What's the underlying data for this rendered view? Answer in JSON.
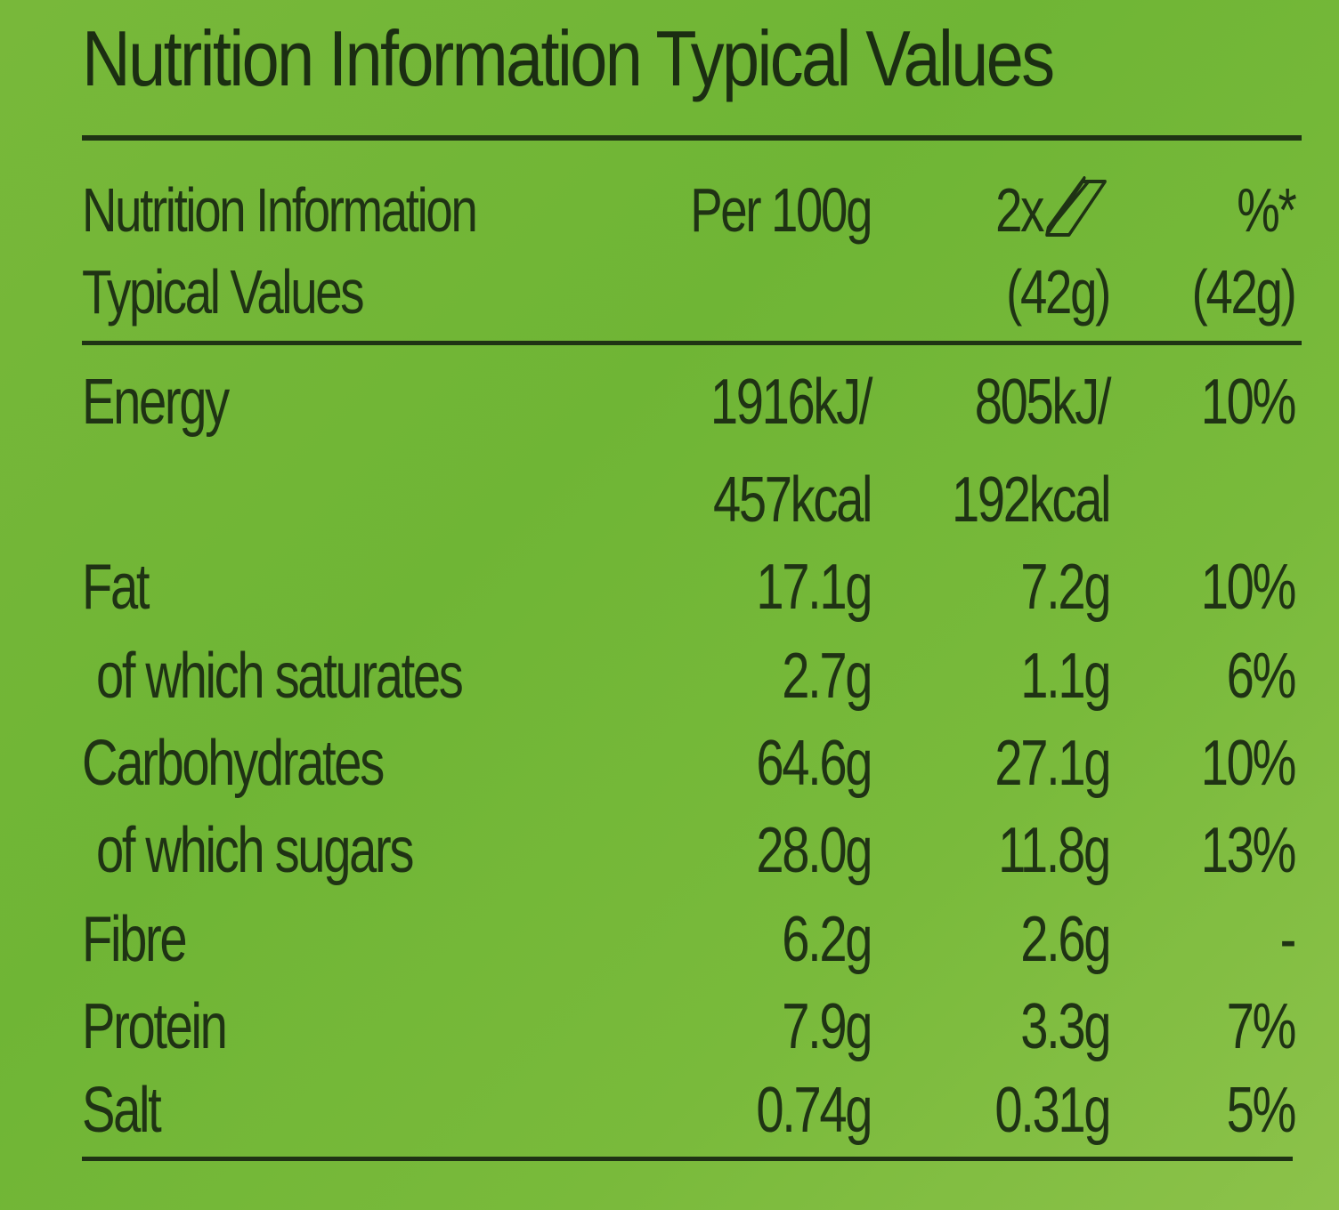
{
  "title": "Nutrition Information Typical Values",
  "header": {
    "label_line1": "Nutrition Information",
    "label_line2": "Typical Values",
    "per100": "Per 100g",
    "serving_prefix": "2x",
    "serving_icon": "bar-icon",
    "serving_weight": "(42g)",
    "pct": "%*",
    "pct_weight": "(42g)"
  },
  "rows": [
    {
      "label": "Energy",
      "per100": "1916kJ/",
      "serving": "805kJ/",
      "pct": "10%"
    },
    {
      "label": "",
      "per100": "457kcal",
      "serving": "192kcal",
      "pct": ""
    },
    {
      "label": "Fat",
      "per100": "17.1g",
      "serving": "7.2g",
      "pct": "10%"
    },
    {
      "label": "of which saturates",
      "per100": "2.7g",
      "serving": "1.1g",
      "pct": "6%"
    },
    {
      "label": "Carbohydrates",
      "per100": "64.6g",
      "serving": "27.1g",
      "pct": "10%"
    },
    {
      "label": "of which sugars",
      "per100": "28.0g",
      "serving": "11.8g",
      "pct": "13%"
    },
    {
      "label": "Fibre",
      "per100": "6.2g",
      "serving": "2.6g",
      "pct": "-"
    },
    {
      "label": "Protein",
      "per100": "7.9g",
      "serving": "3.3g",
      "pct": "7%"
    },
    {
      "label": "Salt",
      "per100": "0.74g",
      "serving": "0.31g",
      "pct": "5%"
    }
  ]
}
